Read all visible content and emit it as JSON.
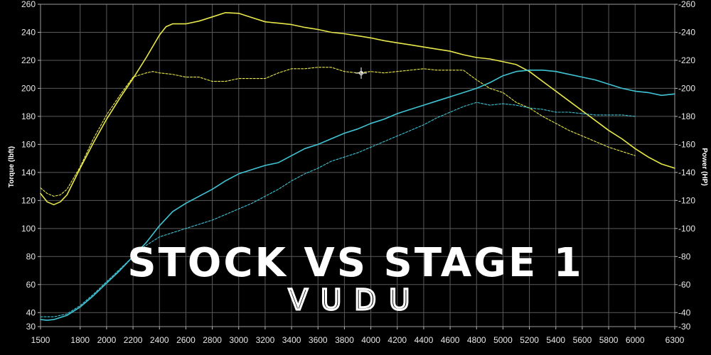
{
  "chart_data": {
    "type": "line",
    "title": "",
    "overlay_text": "STOCK VS STAGE 1",
    "brand_logo_text": "VUDU",
    "xlabel": "",
    "ylabel_left": "Torque (lbft)",
    "ylabel_right": "Power (HP)",
    "x_ticks": [
      1500,
      1800,
      2000,
      2200,
      2400,
      2600,
      2800,
      3000,
      3200,
      3400,
      3600,
      3800,
      4000,
      4200,
      4400,
      4600,
      4800,
      5000,
      5200,
      5400,
      5600,
      5800,
      6000,
      6300
    ],
    "y_ticks_left": [
      30,
      40,
      60,
      80,
      100,
      120,
      140,
      160,
      180,
      200,
      220,
      240,
      260
    ],
    "y_ticks_right": [
      30,
      40,
      60,
      80,
      100,
      120,
      140,
      160,
      180,
      200,
      220,
      240,
      260
    ],
    "xlim": [
      1500,
      6300
    ],
    "ylim": [
      30,
      260
    ],
    "grid": true,
    "background": "#000000",
    "grid_color": "#5a5a5a",
    "series": [
      {
        "color": "#e8e84a",
        "style": "solid",
        "x": [
          1500,
          1550,
          1600,
          1650,
          1700,
          1800,
          1900,
          2000,
          2100,
          2200,
          2300,
          2400,
          2450,
          2500,
          2550,
          2600,
          2700,
          2800,
          2900,
          3000,
          3050,
          3100,
          3200,
          3300,
          3400,
          3500,
          3600,
          3700,
          3800,
          3900,
          4000,
          4100,
          4200,
          4300,
          4400,
          4500,
          4600,
          4700,
          4800,
          4900,
          5000,
          5100,
          5200,
          5300,
          5400,
          5500,
          5600,
          5700,
          5800,
          5900,
          6000,
          6100,
          6200,
          6300
        ],
        "values": [
          125,
          119,
          117,
          119,
          124,
          143,
          161,
          178,
          193,
          207,
          222,
          238,
          244,
          246,
          246,
          246,
          248,
          251,
          254,
          253.5,
          252,
          250.5,
          247.5,
          246.5,
          245.5,
          243.5,
          242,
          240,
          239,
          237.5,
          236,
          234,
          232.5,
          231,
          229.5,
          228,
          226.5,
          224,
          222,
          221,
          219,
          217,
          212,
          205,
          198,
          191,
          184,
          177,
          170,
          164,
          157,
          151,
          146,
          143
        ]
      },
      {
        "color": "#e8e84a",
        "style": "dashed",
        "x": [
          1500,
          1550,
          1600,
          1650,
          1700,
          1800,
          1900,
          2000,
          2100,
          2200,
          2300,
          2350,
          2400,
          2500,
          2600,
          2700,
          2800,
          2900,
          3000,
          3100,
          3200,
          3300,
          3400,
          3500,
          3600,
          3700,
          3800,
          3900,
          4000,
          4100,
          4200,
          4300,
          4400,
          4500,
          4600,
          4700,
          4800,
          4900,
          5000,
          5100,
          5200,
          5300,
          5400,
          5500,
          5600,
          5700,
          5800,
          5900,
          6000
        ],
        "values": [
          129,
          125,
          123,
          124,
          128,
          144,
          164,
          181,
          195,
          208,
          211,
          212,
          211,
          210,
          208,
          208,
          205,
          205,
          207,
          207,
          207,
          211,
          214,
          214,
          215,
          215,
          212,
          211,
          212,
          211,
          212,
          213,
          214,
          213,
          213,
          213,
          206,
          200,
          197,
          190,
          186,
          180,
          175,
          170,
          166,
          162,
          158,
          155,
          152
        ]
      },
      {
        "color": "#3fc4d4",
        "style": "solid",
        "x": [
          1500,
          1550,
          1600,
          1700,
          1800,
          1900,
          2000,
          2100,
          2200,
          2300,
          2400,
          2500,
          2600,
          2700,
          2800,
          2900,
          3000,
          3100,
          3200,
          3300,
          3400,
          3500,
          3600,
          3700,
          3800,
          3900,
          4000,
          4100,
          4200,
          4300,
          4400,
          4500,
          4600,
          4700,
          4800,
          4900,
          5000,
          5100,
          5200,
          5300,
          5400,
          5500,
          5600,
          5700,
          5800,
          5900,
          6000,
          6100,
          6200,
          6300
        ],
        "values": [
          35,
          34.5,
          35,
          38,
          44,
          52,
          61,
          70,
          80,
          90,
          102,
          112,
          118,
          123,
          128,
          134,
          139,
          142,
          145,
          147,
          152,
          157,
          160,
          164,
          168,
          171,
          175,
          178,
          182,
          185,
          188,
          191,
          194,
          197,
          200,
          204,
          209,
          212,
          213,
          213,
          212,
          210,
          208,
          206,
          203,
          200,
          198,
          197,
          195,
          196
        ]
      },
      {
        "color": "#3fc4d4",
        "style": "dashed",
        "x": [
          1500,
          1550,
          1600,
          1700,
          1800,
          1900,
          2000,
          2100,
          2200,
          2300,
          2400,
          2500,
          2600,
          2700,
          2800,
          2900,
          3000,
          3100,
          3200,
          3300,
          3400,
          3500,
          3600,
          3700,
          3800,
          3900,
          4000,
          4100,
          4200,
          4300,
          4400,
          4500,
          4600,
          4700,
          4800,
          4900,
          5000,
          5100,
          5200,
          5300,
          5400,
          5500,
          5600,
          5700,
          5800,
          5900,
          6000
        ],
        "values": [
          37,
          37,
          37,
          39,
          45,
          53,
          62,
          71,
          80,
          88,
          94,
          97,
          100,
          103,
          106,
          110,
          114,
          118,
          123,
          128,
          134,
          139,
          143,
          148,
          151,
          154,
          158,
          162,
          166,
          170,
          174,
          179,
          183,
          187,
          190,
          188,
          189,
          188,
          186,
          185,
          183,
          183,
          182,
          181,
          181,
          181,
          180
        ]
      }
    ]
  }
}
